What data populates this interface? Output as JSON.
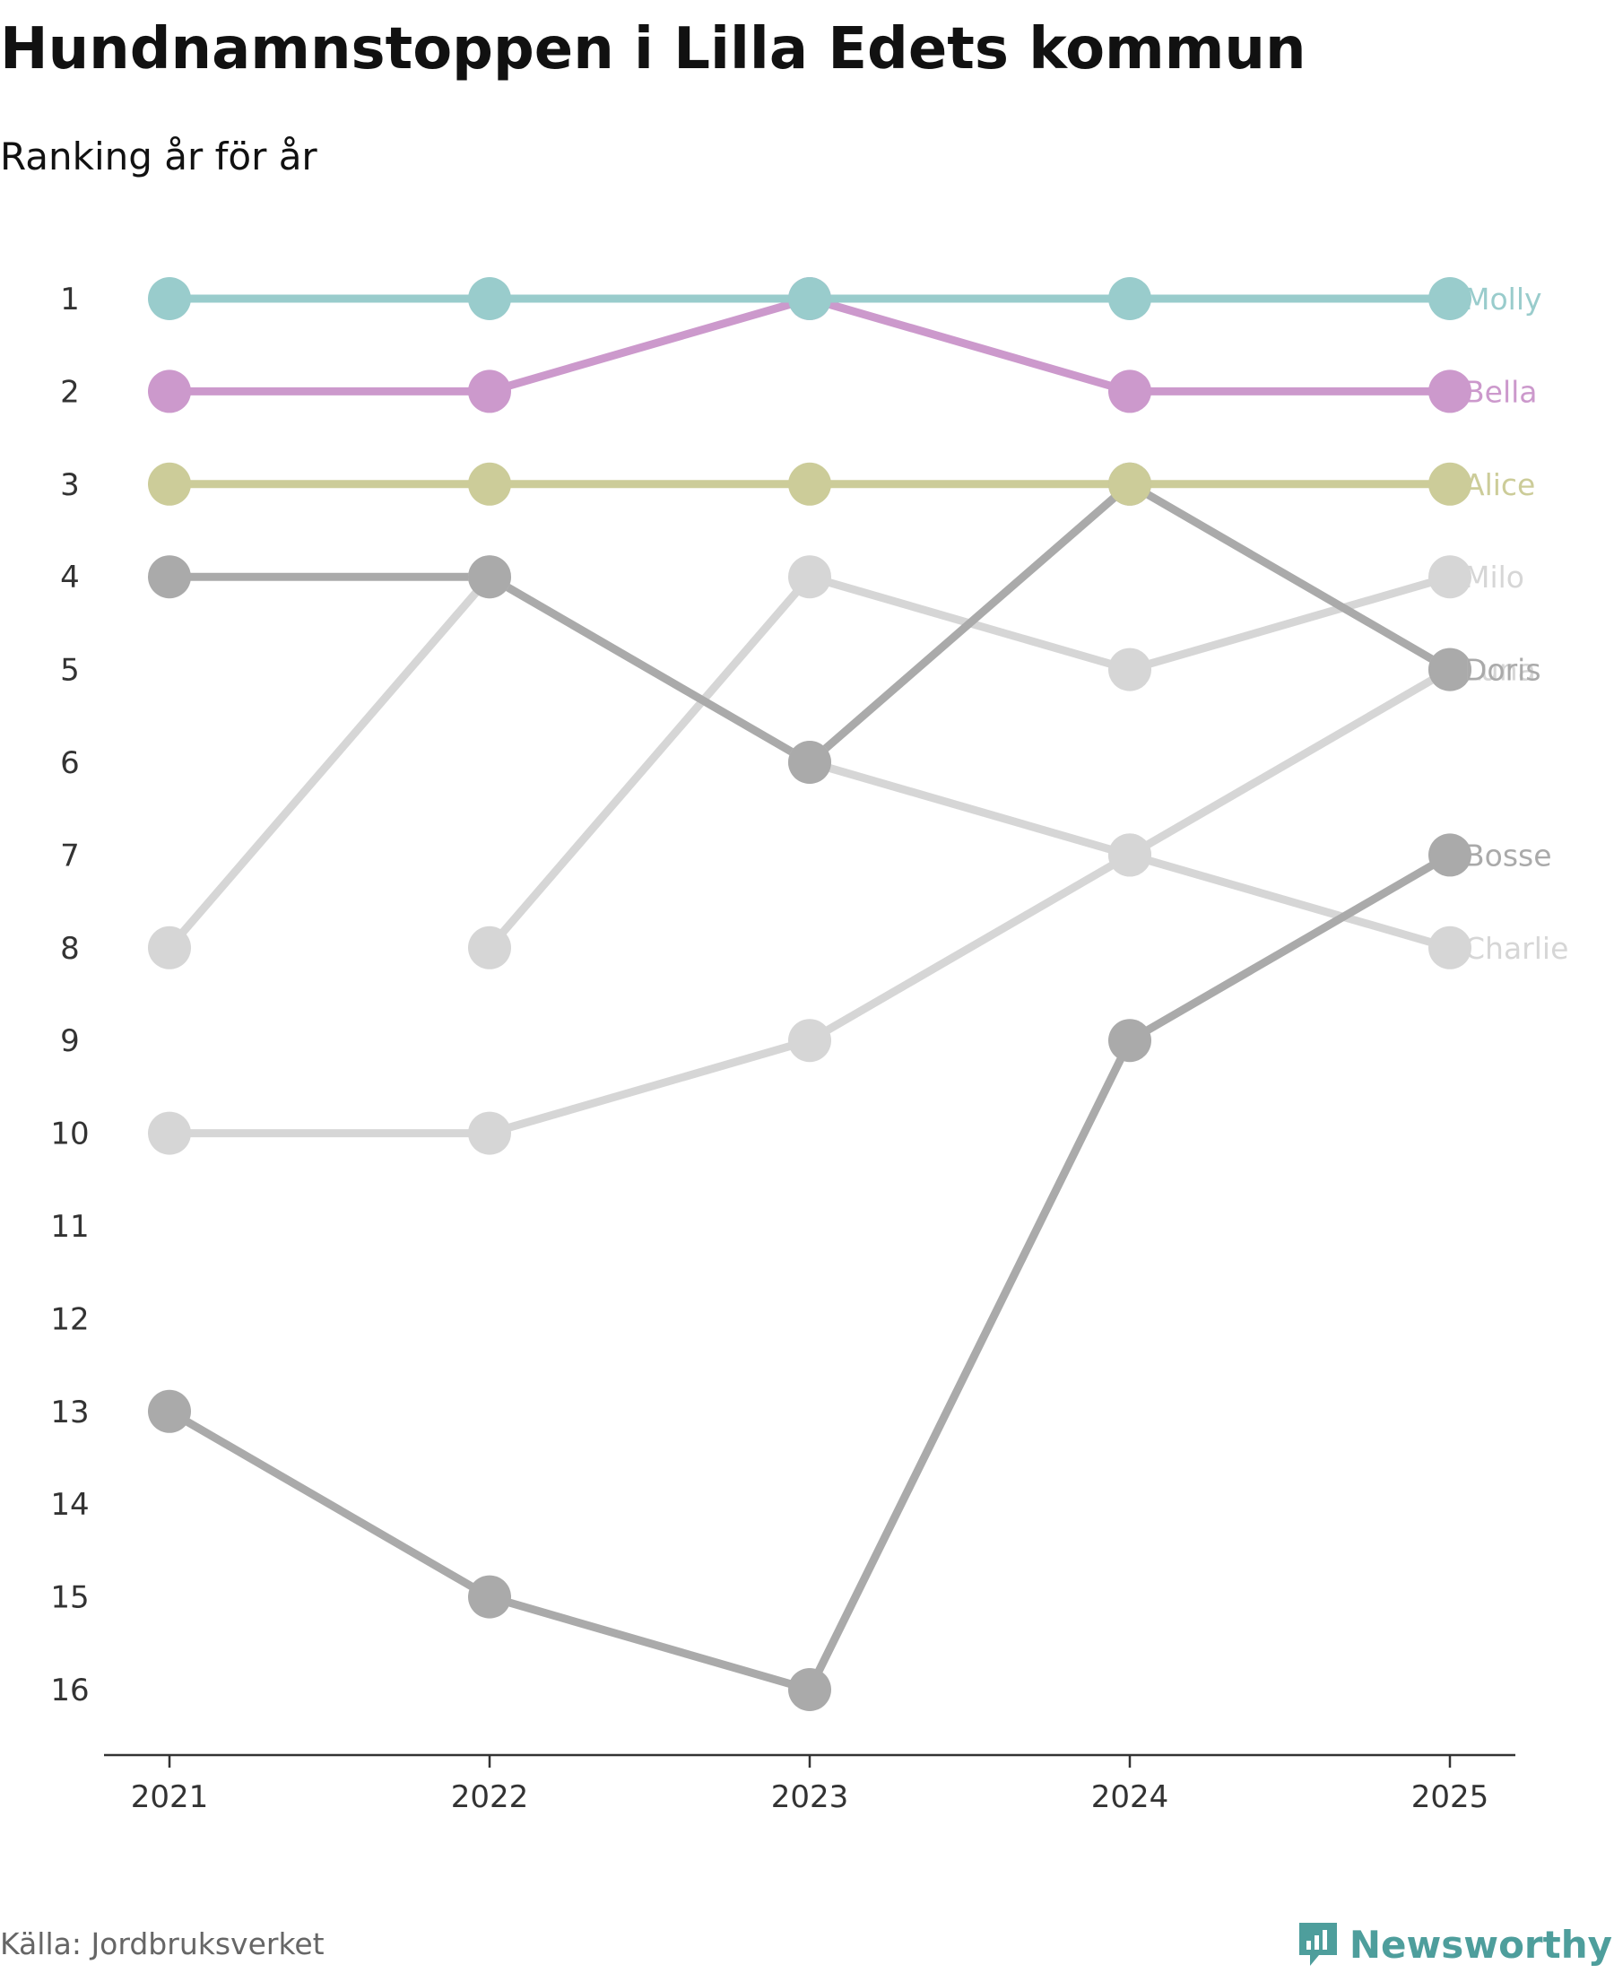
{
  "chart_data": {
    "type": "line",
    "title": "Hundnamnstoppen i Lilla Edets kommun",
    "subtitle": "Ranking år för år",
    "xlabel": "",
    "ylabel": "",
    "x": [
      "2021",
      "2022",
      "2023",
      "2024",
      "2025"
    ],
    "yticks": [
      1,
      2,
      3,
      4,
      5,
      6,
      7,
      8,
      9,
      10,
      11,
      12,
      13,
      14,
      15,
      16
    ],
    "ylim": [
      1,
      16
    ],
    "y_inverted": true,
    "grid": false,
    "legend": "direct labels at right end",
    "series": [
      {
        "name": "Luna",
        "color": "#d6d6d6",
        "values": [
          10,
          10,
          9,
          7,
          5
        ]
      },
      {
        "name": "Charlie",
        "color": "#d6d6d6",
        "values": [
          8,
          4,
          6,
          7,
          8
        ]
      },
      {
        "name": "Milo",
        "color": "#d6d6d6",
        "values": [
          null,
          8,
          4,
          5,
          4
        ]
      },
      {
        "name": "Bosse",
        "color": "#aaaaaa",
        "values": [
          13,
          15,
          16,
          9,
          7
        ]
      },
      {
        "name": "Doris",
        "color": "#aaaaaa",
        "values": [
          4,
          4,
          6,
          3,
          5
        ]
      },
      {
        "name": "Alice",
        "color": "#cccc99",
        "values": [
          3,
          3,
          3,
          3,
          3
        ]
      },
      {
        "name": "Bella",
        "color": "#cc99cc",
        "values": [
          2,
          2,
          1,
          2,
          2
        ]
      },
      {
        "name": "Molly",
        "color": "#99cccc",
        "values": [
          1,
          1,
          1,
          1,
          1
        ]
      }
    ]
  },
  "source": "Källa: Jordbruksverket",
  "brand": {
    "name": "Newsworthy",
    "icon": "newsworthy-logo-icon",
    "color": "#4e9e9c"
  }
}
